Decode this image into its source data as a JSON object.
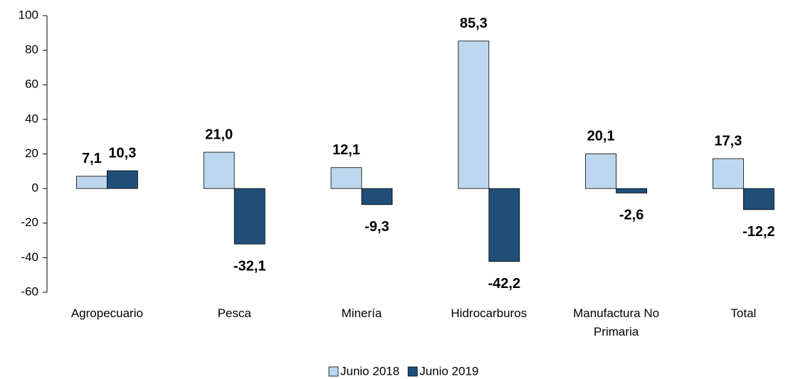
{
  "chart_data": {
    "type": "bar",
    "categories": [
      "Agropecuario",
      "Pesca",
      "Minería",
      "Hidrocarburos",
      "Manufactura No Primaria",
      "Total"
    ],
    "series": [
      {
        "name": "Junio 2018",
        "color": "#bdd7ee",
        "values": [
          7.1,
          21.0,
          12.1,
          85.3,
          20.1,
          17.3
        ],
        "value_labels": [
          "7,1",
          "21,0",
          "12,1",
          "85,3",
          "20,1",
          "17,3"
        ]
      },
      {
        "name": "Junio 2019",
        "color": "#1f4e79",
        "values": [
          10.3,
          -32.1,
          -9.3,
          -42.2,
          -2.6,
          -12.2
        ],
        "value_labels": [
          "10,3",
          "-32,1",
          "-9,3",
          "-42,2",
          "-2,6",
          "-12,2"
        ]
      }
    ],
    "ylim": [
      -60,
      100
    ],
    "yticks": [
      -60,
      -40,
      -20,
      0,
      20,
      40,
      60,
      80,
      100
    ],
    "legend": "bottom"
  }
}
